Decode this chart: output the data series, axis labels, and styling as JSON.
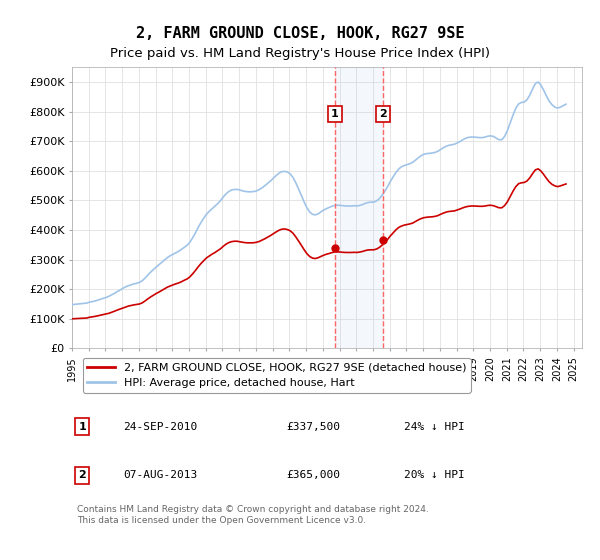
{
  "title": "2, FARM GROUND CLOSE, HOOK, RG27 9SE",
  "subtitle": "Price paid vs. HM Land Registry's House Price Index (HPI)",
  "title_fontsize": 12,
  "subtitle_fontsize": 10,
  "ylabel_ticks": [
    "£0",
    "£100K",
    "£200K",
    "£300K",
    "£400K",
    "£500K",
    "£600K",
    "£700K",
    "£800K",
    "£900K"
  ],
  "ylim": [
    0,
    950000
  ],
  "xlim_start": 1995.0,
  "xlim_end": 2025.5,
  "background_color": "#ffffff",
  "grid_color": "#e0e0e0",
  "hpi_color": "#a0c4e8",
  "price_color": "#cc0000",
  "dashed_line_color": "#ff6666",
  "transaction1_date": 2010.73,
  "transaction1_price": 337500,
  "transaction1_label": "1",
  "transaction2_date": 2013.59,
  "transaction2_price": 365000,
  "transaction2_label": "2",
  "legend_entry1": "2, FARM GROUND CLOSE, HOOK, RG27 9SE (detached house)",
  "legend_entry2": "HPI: Average price, detached house, Hart",
  "table_row1": [
    "1",
    "24-SEP-2010",
    "£337,500",
    "24% ↓ HPI"
  ],
  "table_row2": [
    "2",
    "07-AUG-2013",
    "£365,000",
    "20% ↓ HPI"
  ],
  "footer": "Contains HM Land Registry data © Crown copyright and database right 2024.\nThis data is licensed under the Open Government Licence v3.0.",
  "hpi_data": {
    "years": [
      1995.04,
      1995.21,
      1995.38,
      1995.54,
      1995.71,
      1995.88,
      1996.04,
      1996.21,
      1996.38,
      1996.54,
      1996.71,
      1996.88,
      1997.04,
      1997.21,
      1997.38,
      1997.54,
      1997.71,
      1997.88,
      1998.04,
      1998.21,
      1998.38,
      1998.54,
      1998.71,
      1998.88,
      1999.04,
      1999.21,
      1999.38,
      1999.54,
      1999.71,
      1999.88,
      2000.04,
      2000.21,
      2000.38,
      2000.54,
      2000.71,
      2000.88,
      2001.04,
      2001.21,
      2001.38,
      2001.54,
      2001.71,
      2001.88,
      2002.04,
      2002.21,
      2002.38,
      2002.54,
      2002.71,
      2002.88,
      2003.04,
      2003.21,
      2003.38,
      2003.54,
      2003.71,
      2003.88,
      2004.04,
      2004.21,
      2004.38,
      2004.54,
      2004.71,
      2004.88,
      2005.04,
      2005.21,
      2005.38,
      2005.54,
      2005.71,
      2005.88,
      2006.04,
      2006.21,
      2006.38,
      2006.54,
      2006.71,
      2006.88,
      2007.04,
      2007.21,
      2007.38,
      2007.54,
      2007.71,
      2007.88,
      2008.04,
      2008.21,
      2008.38,
      2008.54,
      2008.71,
      2008.88,
      2009.04,
      2009.21,
      2009.38,
      2009.54,
      2009.71,
      2009.88,
      2010.04,
      2010.21,
      2010.38,
      2010.54,
      2010.71,
      2010.88,
      2011.04,
      2011.21,
      2011.38,
      2011.54,
      2011.71,
      2011.88,
      2012.04,
      2012.21,
      2012.38,
      2012.54,
      2012.71,
      2012.88,
      2013.04,
      2013.21,
      2013.38,
      2013.54,
      2013.71,
      2013.88,
      2014.04,
      2014.21,
      2014.38,
      2014.54,
      2014.71,
      2014.88,
      2015.04,
      2015.21,
      2015.38,
      2015.54,
      2015.71,
      2015.88,
      2016.04,
      2016.21,
      2016.38,
      2016.54,
      2016.71,
      2016.88,
      2017.04,
      2017.21,
      2017.38,
      2017.54,
      2017.71,
      2017.88,
      2018.04,
      2018.21,
      2018.38,
      2018.54,
      2018.71,
      2018.88,
      2019.04,
      2019.21,
      2019.38,
      2019.54,
      2019.71,
      2019.88,
      2020.04,
      2020.21,
      2020.38,
      2020.54,
      2020.71,
      2020.88,
      2021.04,
      2021.21,
      2021.38,
      2021.54,
      2021.71,
      2021.88,
      2022.04,
      2022.21,
      2022.38,
      2022.54,
      2022.71,
      2022.88,
      2023.04,
      2023.21,
      2023.38,
      2023.54,
      2023.71,
      2023.88,
      2024.04,
      2024.21,
      2024.38,
      2024.54
    ],
    "values": [
      148000,
      149000,
      150000,
      151000,
      152000,
      153000,
      156000,
      158000,
      160000,
      163000,
      166000,
      169000,
      172000,
      176000,
      181000,
      186000,
      192000,
      197000,
      203000,
      208000,
      212000,
      215000,
      218000,
      220000,
      223000,
      229000,
      238000,
      248000,
      258000,
      267000,
      275000,
      283000,
      291000,
      299000,
      307000,
      313000,
      318000,
      323000,
      328000,
      334000,
      341000,
      348000,
      358000,
      373000,
      390000,
      408000,
      425000,
      440000,
      453000,
      463000,
      472000,
      480000,
      489000,
      499000,
      511000,
      522000,
      530000,
      535000,
      537000,
      537000,
      535000,
      532000,
      530000,
      529000,
      529000,
      530000,
      532000,
      537000,
      543000,
      550000,
      558000,
      566000,
      575000,
      584000,
      592000,
      597000,
      598000,
      596000,
      590000,
      578000,
      560000,
      540000,
      518000,
      495000,
      476000,
      461000,
      453000,
      451000,
      454000,
      461000,
      467000,
      472000,
      476000,
      480000,
      483000,
      484000,
      483000,
      482000,
      481000,
      481000,
      481000,
      482000,
      481000,
      483000,
      486000,
      490000,
      493000,
      494000,
      494000,
      498000,
      506000,
      517000,
      531000,
      547000,
      564000,
      580000,
      595000,
      606000,
      614000,
      618000,
      621000,
      624000,
      629000,
      636000,
      644000,
      651000,
      656000,
      658000,
      659000,
      660000,
      662000,
      666000,
      672000,
      678000,
      683000,
      686000,
      688000,
      690000,
      694000,
      699000,
      705000,
      710000,
      713000,
      714000,
      714000,
      713000,
      712000,
      712000,
      714000,
      717000,
      718000,
      716000,
      710000,
      705000,
      705000,
      717000,
      736000,
      762000,
      789000,
      811000,
      826000,
      831000,
      832000,
      840000,
      856000,
      876000,
      895000,
      900000,
      890000,
      872000,
      852000,
      835000,
      823000,
      815000,
      812000,
      815000,
      820000,
      825000
    ]
  },
  "price_index_data": {
    "years": [
      1995.04,
      1995.21,
      1995.38,
      1995.54,
      1995.71,
      1995.88,
      1996.04,
      1996.21,
      1996.38,
      1996.54,
      1996.71,
      1996.88,
      1997.04,
      1997.21,
      1997.38,
      1997.54,
      1997.71,
      1997.88,
      1998.04,
      1998.21,
      1998.38,
      1998.54,
      1998.71,
      1998.88,
      1999.04,
      1999.21,
      1999.38,
      1999.54,
      1999.71,
      1999.88,
      2000.04,
      2000.21,
      2000.38,
      2000.54,
      2000.71,
      2000.88,
      2001.04,
      2001.21,
      2001.38,
      2001.54,
      2001.71,
      2001.88,
      2002.04,
      2002.21,
      2002.38,
      2002.54,
      2002.71,
      2002.88,
      2003.04,
      2003.21,
      2003.38,
      2003.54,
      2003.71,
      2003.88,
      2004.04,
      2004.21,
      2004.38,
      2004.54,
      2004.71,
      2004.88,
      2005.04,
      2005.21,
      2005.38,
      2005.54,
      2005.71,
      2005.88,
      2006.04,
      2006.21,
      2006.38,
      2006.54,
      2006.71,
      2006.88,
      2007.04,
      2007.21,
      2007.38,
      2007.54,
      2007.71,
      2007.88,
      2008.04,
      2008.21,
      2008.38,
      2008.54,
      2008.71,
      2008.88,
      2009.04,
      2009.21,
      2009.38,
      2009.54,
      2009.71,
      2009.88,
      2010.04,
      2010.21,
      2010.38,
      2010.54,
      2010.71,
      2010.88,
      2011.04,
      2011.21,
      2011.38,
      2011.54,
      2011.71,
      2011.88,
      2012.04,
      2012.21,
      2012.38,
      2012.54,
      2012.71,
      2012.88,
      2013.04,
      2013.21,
      2013.38,
      2013.54,
      2013.71,
      2013.88,
      2014.04,
      2014.21,
      2014.38,
      2014.54,
      2014.71,
      2014.88,
      2015.04,
      2015.21,
      2015.38,
      2015.54,
      2015.71,
      2015.88,
      2016.04,
      2016.21,
      2016.38,
      2016.54,
      2016.71,
      2016.88,
      2017.04,
      2017.21,
      2017.38,
      2017.54,
      2017.71,
      2017.88,
      2018.04,
      2018.21,
      2018.38,
      2018.54,
      2018.71,
      2018.88,
      2019.04,
      2019.21,
      2019.38,
      2019.54,
      2019.71,
      2019.88,
      2020.04,
      2020.21,
      2020.38,
      2020.54,
      2020.71,
      2020.88,
      2021.04,
      2021.21,
      2021.38,
      2021.54,
      2021.71,
      2021.88,
      2022.04,
      2022.21,
      2022.38,
      2022.54,
      2022.71,
      2022.88,
      2023.04,
      2023.21,
      2023.38,
      2023.54,
      2023.71,
      2023.88,
      2024.04,
      2024.21,
      2024.38,
      2024.54
    ],
    "values": [
      100000,
      100500,
      101000,
      101500,
      102000,
      102500,
      105000,
      106500,
      108000,
      110000,
      112000,
      114000,
      116000,
      118500,
      122000,
      125500,
      129500,
      133000,
      136500,
      140000,
      143000,
      145000,
      147000,
      148500,
      150000,
      154000,
      160500,
      167500,
      174000,
      180000,
      185500,
      190500,
      196000,
      201500,
      207000,
      211000,
      214500,
      218000,
      221000,
      225000,
      230000,
      234500,
      241000,
      251500,
      263000,
      275000,
      286500,
      296500,
      305500,
      312000,
      318500,
      323500,
      330000,
      336500,
      344500,
      352000,
      357500,
      360500,
      362000,
      362000,
      360000,
      358500,
      357000,
      356500,
      356500,
      357000,
      358500,
      361500,
      366000,
      370500,
      376000,
      381500,
      387500,
      393500,
      399000,
      402500,
      403500,
      401500,
      397500,
      389500,
      377000,
      363500,
      349000,
      333500,
      320500,
      310500,
      305000,
      303500,
      306000,
      310500,
      314500,
      318000,
      320500,
      323500,
      325500,
      326000,
      325500,
      324500,
      324000,
      324000,
      324000,
      324500,
      324000,
      325500,
      327500,
      330500,
      332500,
      333000,
      333000,
      335500,
      341000,
      348500,
      357500,
      368500,
      380000,
      390500,
      401000,
      408500,
      413500,
      416500,
      418500,
      420500,
      423500,
      428500,
      434000,
      438500,
      441500,
      443000,
      444000,
      444500,
      446000,
      448500,
      453000,
      457000,
      460500,
      462500,
      463500,
      464500,
      467500,
      471000,
      475000,
      478000,
      480000,
      481000,
      481000,
      480500,
      480000,
      480000,
      481000,
      483000,
      483500,
      482000,
      478500,
      475000,
      475000,
      483000,
      495500,
      513500,
      531500,
      546500,
      556500,
      559500,
      560500,
      565500,
      576500,
      590000,
      603000,
      606500,
      599500,
      587500,
      574000,
      562500,
      554000,
      549000,
      546500,
      549000,
      552500,
      555500
    ]
  }
}
